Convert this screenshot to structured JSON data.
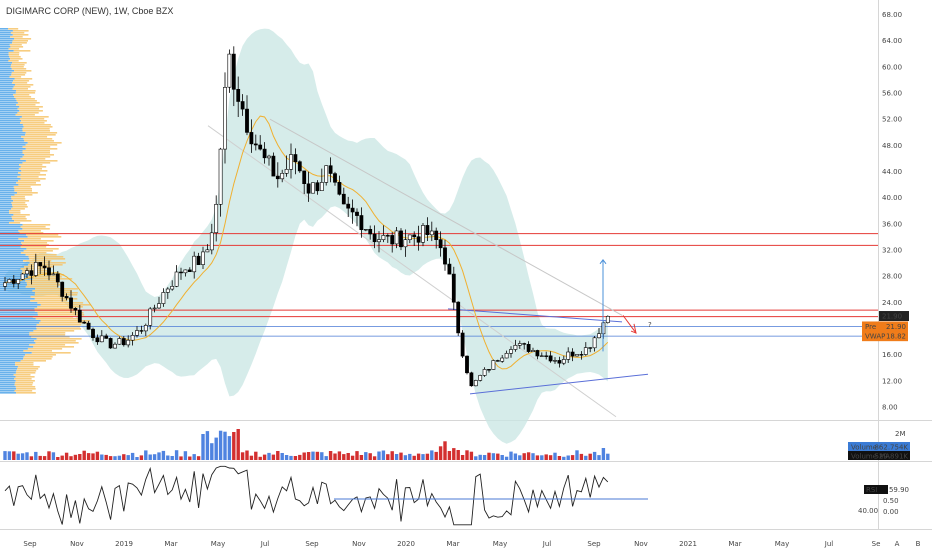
{
  "header": {
    "title": "DIGIMARC CORP (NEW), 1W, Cboe BZX"
  },
  "colors": {
    "up": "#ffffff",
    "down": "#000000",
    "wick": "#000000",
    "bb_fill": "#c8e6e3",
    "ma": "#f0b030",
    "hline": "#e53935",
    "trend": "#5a6fd8",
    "blue_line": "#4a7ad6",
    "vol_up": "#4f83e0",
    "vol_down": "#d32f2f",
    "vp_blue": "#4fa3e8",
    "vp_yellow": "#f6c46a",
    "pre_tag": "#f07c1a",
    "vwap_tag": "#f07c1a",
    "vol_tag": "#3a7bd5"
  },
  "chart_data": [
    {
      "type": "candlestick",
      "y_ticks": [
        "68.00",
        "64.00",
        "60.00",
        "56.00",
        "52.00",
        "48.00",
        "44.00",
        "40.00",
        "36.00",
        "32.00",
        "28.00",
        "24.00",
        "21.90",
        "2d 10h",
        "20.00",
        "16.00",
        "12.00",
        "8.00"
      ],
      "x_ticks": [
        "Sep",
        "Nov",
        "2019",
        "Mar",
        "May",
        "Jul",
        "Sep",
        "Nov",
        "2020",
        "Mar",
        "May",
        "Jul",
        "Sep",
        "Nov",
        "2021",
        "Mar",
        "May",
        "Jul",
        "Se"
      ],
      "ylim": [
        6,
        69
      ],
      "horizontal_levels": [
        34.5,
        32.7,
        22.8,
        21.8
      ],
      "price_tags": [
        {
          "label": "Pre",
          "value": "21.90"
        },
        {
          "label": "VWAP",
          "value": "18.82"
        }
      ],
      "annotations": [
        "?"
      ]
    },
    {
      "type": "bar",
      "name": "Volume",
      "y_ticks": [
        "2M"
      ],
      "legend": [
        {
          "label": "Volume",
          "value": "862.754K"
        },
        {
          "label": "Volume MA",
          "value": "529.891K"
        }
      ]
    },
    {
      "type": "line",
      "name": "RSI",
      "legend_value": "59.90",
      "y_ticks_left": [
        "40.00"
      ],
      "y_ticks_right": [
        "0.50",
        "0.00"
      ]
    }
  ],
  "axis_buttons": [
    "A",
    "B"
  ]
}
